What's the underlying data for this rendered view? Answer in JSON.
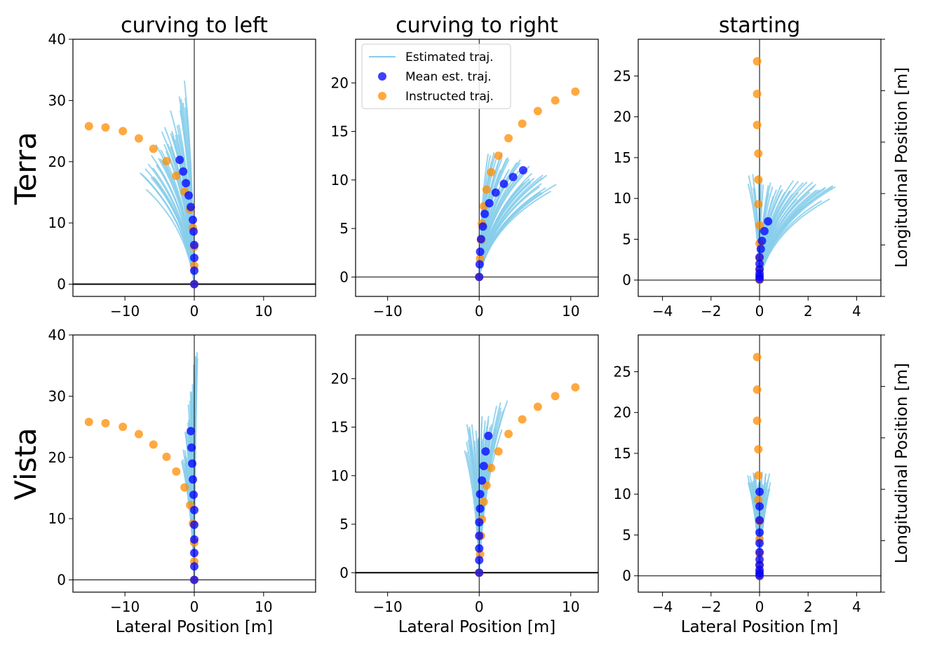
{
  "colors": {
    "estimated": "#87ceeb",
    "mean": "#0000ff",
    "instructed": "#ff8c00",
    "axis": "#000000"
  },
  "labels": {
    "col_titles": [
      "curving to left",
      "curving to right",
      "starting"
    ],
    "row_titles": [
      "Terra",
      "Vista"
    ],
    "xlabel": "Lateral Position [m]",
    "ylabel": "Longitudinal Position [m]"
  },
  "legend": {
    "placement": "upper-left",
    "entries": [
      {
        "label": "Estimated traj.",
        "kind": "line",
        "color": "#87ceeb"
      },
      {
        "label": "Mean est. traj.",
        "kind": "marker",
        "color": "#0000ff"
      },
      {
        "label": "Instructed traj.",
        "kind": "marker",
        "color": "#ff8c00"
      }
    ]
  },
  "chart_data": [
    {
      "type": "scatter",
      "row": "Terra",
      "column": "curving to left",
      "xlim": [
        -17.5,
        17.5
      ],
      "ylim": [
        -2,
        40
      ],
      "xticks": [
        -10,
        0,
        10
      ],
      "yticks": [
        0,
        10,
        20,
        30,
        40
      ],
      "instructed": [
        [
          -15.2,
          25.8
        ],
        [
          -12.8,
          25.6
        ],
        [
          -10.3,
          25.0
        ],
        [
          -8.0,
          23.8
        ],
        [
          -5.9,
          22.1
        ],
        [
          -4.0,
          20.1
        ],
        [
          -2.6,
          17.7
        ],
        [
          -1.4,
          15.1
        ],
        [
          -0.6,
          12.2
        ],
        [
          -0.2,
          9.2
        ],
        [
          0.0,
          6.1
        ],
        [
          0.0,
          3.0
        ],
        [
          0.0,
          0.0
        ]
      ],
      "mean": [
        [
          0,
          0
        ],
        [
          0,
          2.2
        ],
        [
          0,
          4.3
        ],
        [
          0,
          6.4
        ],
        [
          -0.1,
          8.6
        ],
        [
          -0.2,
          10.5
        ],
        [
          -0.5,
          12.6
        ],
        [
          -0.8,
          14.5
        ],
        [
          -1.2,
          16.5
        ],
        [
          -1.6,
          18.4
        ],
        [
          -2.1,
          20.3
        ]
      ],
      "estimated_envelope": {
        "left_end": [
          -7.7,
          16.8
        ],
        "right_end": [
          -1.2,
          32.3
        ]
      }
    },
    {
      "type": "scatter",
      "row": "Terra",
      "column": "curving to right",
      "xlim": [
        -13.5,
        13
      ],
      "ylim": [
        -2,
        24.5
      ],
      "xticks": [
        -10,
        0,
        10
      ],
      "yticks": [
        0,
        5,
        10,
        15,
        20
      ],
      "instructed": [
        [
          0,
          0
        ],
        [
          0.1,
          1.9
        ],
        [
          0.2,
          3.8
        ],
        [
          0.3,
          5.5
        ],
        [
          0.5,
          7.3
        ],
        [
          0.8,
          9.0
        ],
        [
          1.3,
          10.8
        ],
        [
          2.1,
          12.5
        ],
        [
          3.2,
          14.3
        ],
        [
          4.7,
          15.8
        ],
        [
          6.4,
          17.1
        ],
        [
          8.3,
          18.2
        ],
        [
          10.5,
          19.1
        ]
      ],
      "mean": [
        [
          0,
          0
        ],
        [
          0.05,
          1.3
        ],
        [
          0.1,
          2.6
        ],
        [
          0.2,
          3.9
        ],
        [
          0.4,
          5.2
        ],
        [
          0.6,
          6.5
        ],
        [
          1.1,
          7.6
        ],
        [
          1.8,
          8.7
        ],
        [
          2.7,
          9.6
        ],
        [
          3.7,
          10.3
        ],
        [
          4.8,
          11.0
        ]
      ],
      "estimated_envelope": {
        "left_end": [
          1.0,
          13.0
        ],
        "right_end": [
          8.5,
          9.6
        ]
      }
    },
    {
      "type": "scatter",
      "row": "Terra",
      "column": "starting",
      "xlim": [
        -5,
        5
      ],
      "ylim": [
        -2,
        29.5
      ],
      "xticks": [
        -4,
        -2,
        0,
        2,
        4
      ],
      "yticks": [
        0,
        5,
        10,
        15,
        20,
        25
      ],
      "instructed": [
        [
          -0.1,
          26.8
        ],
        [
          -0.1,
          22.8
        ],
        [
          -0.1,
          19.0
        ],
        [
          -0.05,
          15.5
        ],
        [
          -0.05,
          12.3
        ],
        [
          -0.05,
          9.3
        ],
        [
          0,
          6.7
        ],
        [
          0,
          4.5
        ],
        [
          0,
          2.7
        ],
        [
          0,
          1.4
        ],
        [
          0,
          0.5
        ],
        [
          0,
          0.0
        ]
      ],
      "mean": [
        [
          0.35,
          7.2
        ],
        [
          0.2,
          6.0
        ],
        [
          0.1,
          4.8
        ],
        [
          0.05,
          3.8
        ],
        [
          0,
          2.8
        ],
        [
          0,
          2.0
        ],
        [
          0,
          1.3
        ],
        [
          0,
          0.8
        ],
        [
          0,
          0.4
        ],
        [
          0,
          0.1
        ]
      ],
      "estimated_envelope": {
        "left_end": [
          -0.5,
          12.5
        ],
        "right_end": [
          3.2,
          11.0
        ]
      }
    },
    {
      "type": "scatter",
      "row": "Vista",
      "column": "curving to left",
      "xlim": [
        -17.5,
        17.5
      ],
      "ylim": [
        -2,
        40
      ],
      "xticks": [
        -10,
        0,
        10
      ],
      "yticks": [
        0,
        10,
        20,
        30,
        40
      ],
      "instructed": [
        [
          -15.2,
          25.8
        ],
        [
          -12.8,
          25.6
        ],
        [
          -10.3,
          25.0
        ],
        [
          -8.0,
          23.8
        ],
        [
          -5.9,
          22.1
        ],
        [
          -4.0,
          20.1
        ],
        [
          -2.6,
          17.7
        ],
        [
          -1.4,
          15.1
        ],
        [
          -0.6,
          12.2
        ],
        [
          -0.2,
          9.2
        ],
        [
          0.0,
          6.1
        ],
        [
          0.0,
          3.0
        ],
        [
          0.0,
          0.0
        ]
      ],
      "mean": [
        [
          0,
          0
        ],
        [
          0,
          2.2
        ],
        [
          0,
          4.4
        ],
        [
          0,
          6.6
        ],
        [
          0,
          9.0
        ],
        [
          0,
          11.4
        ],
        [
          -0.1,
          13.9
        ],
        [
          -0.2,
          16.4
        ],
        [
          -0.3,
          19.0
        ],
        [
          -0.4,
          21.6
        ],
        [
          -0.5,
          24.3
        ]
      ],
      "estimated_envelope": {
        "left_end": [
          -1.8,
          19.0
        ],
        "right_end": [
          0.5,
          38.5
        ]
      }
    },
    {
      "type": "scatter",
      "row": "Vista",
      "column": "curving to right",
      "xlim": [
        -13.5,
        13
      ],
      "ylim": [
        -2,
        24.5
      ],
      "xticks": [
        -10,
        0,
        10
      ],
      "yticks": [
        0,
        5,
        10,
        15,
        20
      ],
      "instructed": [
        [
          0,
          0
        ],
        [
          0.1,
          1.9
        ],
        [
          0.2,
          3.8
        ],
        [
          0.3,
          5.5
        ],
        [
          0.5,
          7.3
        ],
        [
          0.8,
          9.0
        ],
        [
          1.3,
          10.8
        ],
        [
          2.1,
          12.5
        ],
        [
          3.2,
          14.3
        ],
        [
          4.7,
          15.8
        ],
        [
          6.4,
          17.1
        ],
        [
          8.3,
          18.2
        ],
        [
          10.5,
          19.1
        ]
      ],
      "mean": [
        [
          0,
          0
        ],
        [
          0,
          1.3
        ],
        [
          0,
          2.5
        ],
        [
          0,
          3.8
        ],
        [
          0,
          5.2
        ],
        [
          0.1,
          6.6
        ],
        [
          0.1,
          8.1
        ],
        [
          0.3,
          9.5
        ],
        [
          0.5,
          11.0
        ],
        [
          0.7,
          12.5
        ],
        [
          1.0,
          14.1
        ]
      ],
      "estimated_envelope": {
        "left_end": [
          -1.8,
          14.3
        ],
        "right_end": [
          3.0,
          17.3
        ]
      }
    },
    {
      "type": "scatter",
      "row": "Vista",
      "column": "starting",
      "xlim": [
        -5,
        5
      ],
      "ylim": [
        -2,
        29.5
      ],
      "xticks": [
        -4,
        -2,
        0,
        2,
        4
      ],
      "yticks": [
        0,
        5,
        10,
        15,
        20,
        25
      ],
      "instructed": [
        [
          -0.1,
          26.8
        ],
        [
          -0.1,
          22.8
        ],
        [
          -0.1,
          19.0
        ],
        [
          -0.05,
          15.5
        ],
        [
          -0.05,
          12.3
        ],
        [
          -0.05,
          9.3
        ],
        [
          0,
          6.7
        ],
        [
          0,
          4.5
        ],
        [
          0,
          2.7
        ],
        [
          0,
          1.4
        ],
        [
          0,
          0.5
        ],
        [
          0,
          0.0
        ]
      ],
      "mean": [
        [
          0,
          10.3
        ],
        [
          0,
          8.5
        ],
        [
          0,
          6.8
        ],
        [
          0,
          5.3
        ],
        [
          0,
          4.0
        ],
        [
          0,
          2.9
        ],
        [
          0,
          2.0
        ],
        [
          0,
          1.3
        ],
        [
          0,
          0.7
        ],
        [
          0,
          0.3
        ],
        [
          0,
          0.0
        ]
      ],
      "estimated_envelope": {
        "left_end": [
          -0.5,
          12.0
        ],
        "right_end": [
          0.5,
          12.5
        ]
      }
    }
  ]
}
